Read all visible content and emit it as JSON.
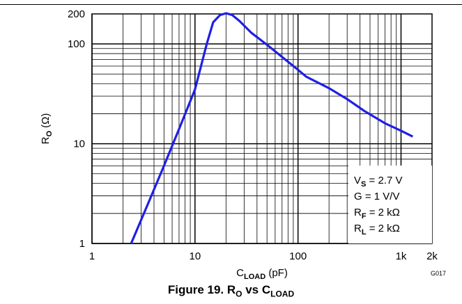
{
  "figure": {
    "caption": "Figure 19. R",
    "caption_sub1": "O",
    "caption_mid": " vs C",
    "caption_sub2": "LOAD",
    "code": "G017"
  },
  "conditions": [
    {
      "main": "V",
      "sub": "S",
      "rest": " = 2.7 V"
    },
    {
      "main": "G = 1 V/V",
      "sub": "",
      "rest": ""
    },
    {
      "main": "R",
      "sub": "F",
      "rest": " = 2 kΩ"
    },
    {
      "main": "R",
      "sub": "L",
      "rest": " = 2 kΩ"
    }
  ],
  "colors": {
    "curve": "#1f1fe6",
    "grid": "#000000"
  },
  "chart_data": {
    "type": "line",
    "xscale": "log",
    "yscale": "log",
    "xlim": [
      1,
      2000
    ],
    "ylim": [
      1,
      200
    ],
    "grid": true,
    "xlabel": {
      "main": "C",
      "sub": "LOAD",
      "rest": " (pF)"
    },
    "ylabel": {
      "main": "R",
      "sub": "O",
      "rest": " (Ω)"
    },
    "xticks": [
      {
        "value": 1,
        "label": "1"
      },
      {
        "value": 10,
        "label": "10"
      },
      {
        "value": 100,
        "label": "100"
      },
      {
        "value": 1000,
        "label": "1k"
      },
      {
        "value": 2000,
        "label": "2k"
      }
    ],
    "yticks": [
      {
        "value": 1,
        "label": "1"
      },
      {
        "value": 10,
        "label": "10"
      },
      {
        "value": 100,
        "label": "100"
      },
      {
        "value": 200,
        "label": "200"
      }
    ],
    "series": [
      {
        "points": [
          [
            2.4,
            1
          ],
          [
            3.5,
            2.5
          ],
          [
            5,
            6
          ],
          [
            7,
            14
          ],
          [
            10,
            35
          ],
          [
            13,
            100
          ],
          [
            15,
            165
          ],
          [
            17.5,
            195
          ],
          [
            20,
            203
          ],
          [
            23,
            195
          ],
          [
            27,
            170
          ],
          [
            35,
            130
          ],
          [
            50,
            98
          ],
          [
            70,
            74
          ],
          [
            100,
            55
          ],
          [
            120,
            47
          ],
          [
            200,
            36
          ],
          [
            300,
            28
          ],
          [
            450,
            21
          ],
          [
            700,
            16
          ],
          [
            1000,
            13.5
          ],
          [
            1300,
            11.8
          ]
        ]
      }
    ]
  }
}
